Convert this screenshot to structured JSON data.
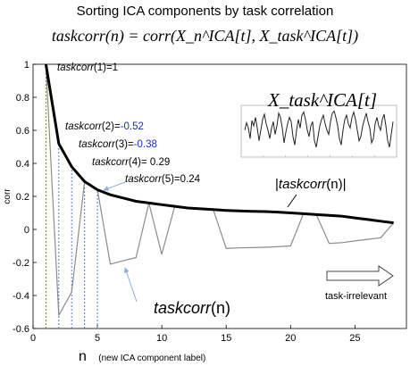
{
  "figure": {
    "title": "Sorting ICA components by task correlation",
    "formula": "taskcorr(n) = corr(X_n^ICA[t], X_task^ICA[t])",
    "inset_title": "X_task^ICA[t]",
    "annotations": {
      "tc1_name": "taskcorr",
      "tc1_val": "(1)=1",
      "tc2_name": "taskcorr",
      "tc2_idx": "(2)=",
      "tc2_val": "-0.52",
      "tc3_name": "taskcorr",
      "tc3_idx": "(3)=",
      "tc3_val": "-0.38",
      "tc4_name": "taskcorr",
      "tc4_val": "(4)= 0.29",
      "tc5_name": "taskcorr",
      "tc5_val": "(5)=0.24",
      "abs_label_pre": "|",
      "abs_label_name": "taskcorr",
      "abs_label_post": "(n)|",
      "n_label_name": "taskcorr",
      "n_label_post": "(n)",
      "task_irrelevant": "task-irrelevant"
    },
    "x_axis_title": "n",
    "x_axis_subtitle": "(new ICA component label)",
    "colors": {
      "thick_line": "#000000",
      "signed_line": "#8c8c8c",
      "arrow_line": "#8aaee0",
      "negative_text": "#1a2ec8",
      "guide": "#3a6fd8"
    }
  },
  "chart_data": {
    "type": "line",
    "ylabel": "corr",
    "xlim": [
      0,
      29
    ],
    "ylim": [
      -0.6,
      1.0
    ],
    "xticks": [
      0,
      5,
      10,
      15,
      20,
      25
    ],
    "yticks": [
      -0.6,
      -0.4,
      -0.2,
      0,
      0.2,
      0.4,
      0.6,
      0.8,
      1
    ],
    "grid": false,
    "series": [
      {
        "name": "|taskcorr(n)|",
        "style": "thick black",
        "x": [
          1,
          2,
          3,
          4,
          5,
          6,
          7,
          8,
          9,
          10,
          11,
          12,
          13,
          14,
          15,
          16,
          17,
          18,
          19,
          20,
          21,
          22,
          23,
          24,
          25,
          26,
          27,
          28
        ],
        "values": [
          1.0,
          0.52,
          0.38,
          0.29,
          0.24,
          0.21,
          0.19,
          0.17,
          0.16,
          0.15,
          0.14,
          0.13,
          0.125,
          0.12,
          0.115,
          0.112,
          0.11,
          0.108,
          0.105,
          0.1,
          0.095,
          0.09,
          0.085,
          0.08,
          0.07,
          0.06,
          0.05,
          0.04
        ]
      },
      {
        "name": "taskcorr(n)",
        "style": "thin grey",
        "x": [
          1,
          2,
          3,
          4,
          5,
          6,
          7,
          8,
          9,
          10,
          11,
          12,
          13,
          14,
          15,
          16,
          17,
          18,
          19,
          20,
          21,
          22,
          23,
          24,
          25,
          26,
          27,
          28
        ],
        "values": [
          1.0,
          -0.52,
          -0.38,
          0.29,
          0.24,
          -0.21,
          -0.19,
          -0.17,
          0.16,
          -0.15,
          0.14,
          0.13,
          0.125,
          0.12,
          -0.115,
          -0.112,
          -0.11,
          -0.108,
          -0.105,
          -0.1,
          0.095,
          0.09,
          -0.085,
          -0.08,
          -0.07,
          -0.06,
          -0.05,
          0.04
        ]
      }
    ],
    "inset": {
      "type": "line",
      "values": [
        0.1,
        0.45,
        0.2,
        -0.3,
        0.55,
        0.3,
        0.7,
        0.2,
        -0.4,
        0.1,
        0.6,
        0.85,
        0.4,
        0.1,
        -0.3,
        0.2,
        0.5,
        -0.1,
        0.3,
        0.9,
        0.7,
        0.2,
        -0.5,
        0.0,
        0.4,
        0.7,
        0.5,
        -0.2,
        -0.6,
        0.1,
        0.6,
        0.2,
        0.8,
        0.95,
        0.6,
        0.1,
        -0.2,
        0.3,
        0.5,
        -0.4,
        -0.7,
        -0.2,
        0.3,
        0.6,
        0.8,
        0.4,
        0.1,
        -0.1,
        0.5,
        0.9,
        1.0,
        0.7,
        0.3,
        -0.3,
        -0.6,
        0.1,
        0.6,
        0.8,
        0.4,
        0.2,
        0.7,
        0.95,
        0.6,
        0.1,
        -0.4,
        -0.2,
        0.3,
        0.6,
        0.9,
        0.5,
        0.2,
        -0.5,
        -0.3,
        0.4,
        0.7,
        0.3,
        0.1,
        0.6,
        0.85,
        0.3,
        -0.4,
        -0.7,
        -0.1,
        0.5
      ]
    }
  }
}
